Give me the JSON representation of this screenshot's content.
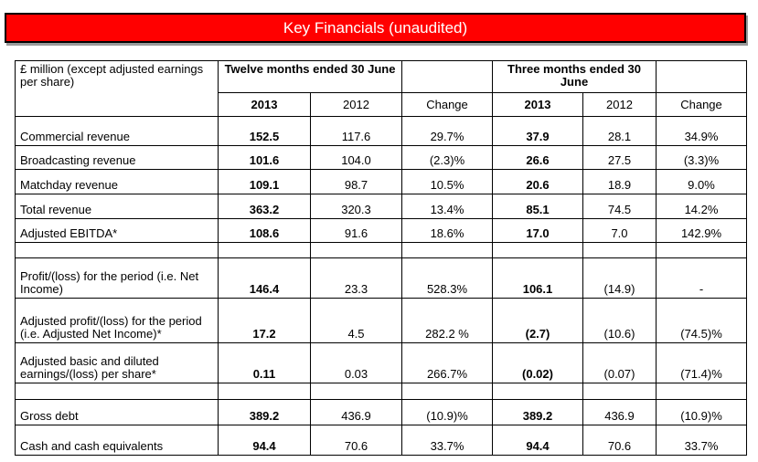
{
  "title": "Key Financials (unaudited)",
  "header": {
    "unit_label": "£ million (except adjusted earnings per share)",
    "group1": "Twelve months ended 30 June",
    "group2": "Three months ended 30 June",
    "cols": [
      "2013",
      "2012",
      "Change",
      "2013",
      "2012",
      "Change"
    ]
  },
  "rows": [
    {
      "label": "Commercial revenue",
      "values": [
        "152.5",
        "117.6",
        "29.7%",
        "37.9",
        "28.1",
        "34.9%"
      ]
    },
    {
      "label": "Broadcasting revenue",
      "values": [
        "101.6",
        "104.0",
        "(2.3)%",
        "26.6",
        "27.5",
        "(3.3)%"
      ]
    },
    {
      "label": "Matchday revenue",
      "values": [
        "109.1",
        "98.7",
        "10.5%",
        "20.6",
        "18.9",
        "9.0%"
      ]
    },
    {
      "label": "Total revenue",
      "values": [
        "363.2",
        "320.3",
        "13.4%",
        "85.1",
        "74.5",
        "14.2%"
      ]
    },
    {
      "label": "Adjusted EBITDA*",
      "values": [
        "108.6",
        "91.6",
        "18.6%",
        "17.0",
        "7.0",
        "142.9%"
      ]
    },
    {
      "label": "Profit/(loss) for the period (i.e. Net Income)",
      "values": [
        "146.4",
        "23.3",
        "528.3%",
        "106.1",
        "(14.9)",
        "-"
      ]
    },
    {
      "label": "Adjusted profit/(loss) for the period (i.e. Adjusted Net Income)*",
      "values": [
        "17.2",
        "4.5",
        "282.2 %",
        "(2.7)",
        "(10.6)",
        "(74.5)%"
      ]
    },
    {
      "label": "Adjusted basic and diluted earnings/(loss) per share*",
      "values": [
        "0.11",
        "0.03",
        "266.7%",
        "(0.02)",
        "(0.07)",
        "(71.4)%"
      ]
    },
    {
      "label": "Gross debt",
      "values": [
        "389.2",
        "436.9",
        "(10.9)%",
        "389.2",
        "436.9",
        "(10.9)%"
      ]
    },
    {
      "label": "Cash and cash equivalents",
      "values": [
        "94.4",
        "70.6",
        "33.7%",
        "94.4",
        "70.6",
        "33.7%"
      ]
    }
  ]
}
